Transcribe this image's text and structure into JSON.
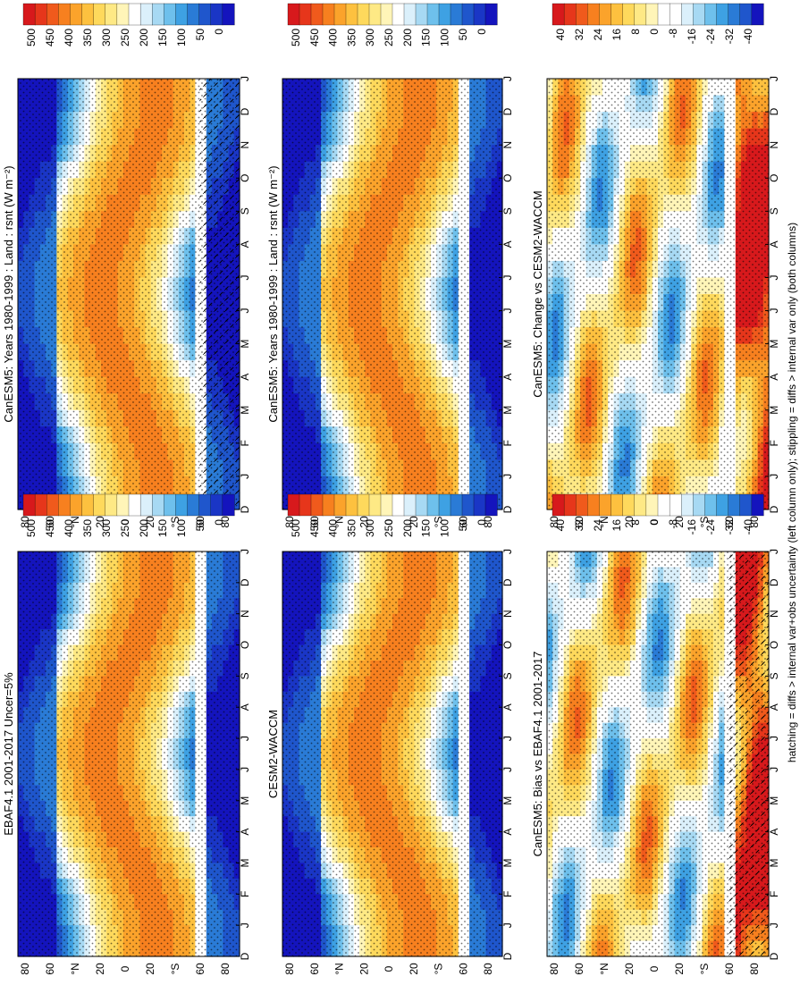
{
  "figure": {
    "footnote": "hatching = diffs > internal var+obs uncertainty (left column only); stippling = diffs > internal var only (both columns)"
  },
  "colors": {
    "abs_scale": [
      "#d7191c",
      "#e6361b",
      "#f05a1c",
      "#f7801f",
      "#fba32b",
      "#fdc13f",
      "#fed95c",
      "#fee985",
      "#fff5b8",
      "#ffffff",
      "#dbf0fb",
      "#a7d9f3",
      "#6ec0ec",
      "#3ea1e3",
      "#2a7bd6",
      "#1f56cc",
      "#1a36c6",
      "#1414bd"
    ],
    "diff_scale": [
      "#d7191c",
      "#e6361b",
      "#f05a1c",
      "#f7801f",
      "#fba32b",
      "#fdc13f",
      "#fed95c",
      "#fee985",
      "#fff5b8",
      "#ffffff",
      "#ffffff",
      "#dbf0fb",
      "#a7d9f3",
      "#6ec0ec",
      "#3ea1e3",
      "#2a7bd6",
      "#1f56cc",
      "#1414bd"
    ]
  },
  "chart_data": [
    {
      "type": "heatmap",
      "title": "CanESM5: Years 1980-1999 : Land : rsnt (W m⁻²)",
      "variable": "rsnt",
      "units": "W m-2",
      "region": "Land",
      "months": [
        "D",
        "J",
        "F",
        "M",
        "A",
        "M",
        "J",
        "J",
        "A",
        "S",
        "O",
        "N",
        "D",
        "J"
      ],
      "lat_ticks": [
        "80",
        "60",
        "°N",
        "20",
        "0",
        "20",
        "°S",
        "60",
        "80"
      ],
      "colorbar_labels": [
        "500",
        "450",
        "400",
        "350",
        "300",
        "250",
        "200",
        "150",
        "100",
        "50",
        "0"
      ],
      "range": [
        0,
        500
      ]
    },
    {
      "type": "heatmap",
      "title": "CanESM5: Years 1980-1999 : Land : rsnt (W m⁻²)",
      "variable": "rsnt",
      "units": "W m-2",
      "region": "Land",
      "months": [
        "D",
        "J",
        "F",
        "M",
        "A",
        "M",
        "J",
        "J",
        "A",
        "S",
        "O",
        "N",
        "D",
        "J"
      ],
      "lat_ticks": [
        "80",
        "60",
        "°N",
        "20",
        "0",
        "20",
        "°S",
        "60",
        "80"
      ],
      "colorbar_labels": [
        "500",
        "450",
        "400",
        "350",
        "300",
        "250",
        "200",
        "150",
        "100",
        "50",
        "0"
      ],
      "range": [
        0,
        500
      ]
    },
    {
      "type": "heatmap",
      "title": "EBAF4.1 2001-2017 Uncer=5%",
      "months": [
        "D",
        "J",
        "F",
        "M",
        "A",
        "M",
        "J",
        "J",
        "A",
        "S",
        "O",
        "N",
        "D",
        "J"
      ],
      "lat_ticks": [
        "80",
        "60",
        "°N",
        "20",
        "0",
        "20",
        "°S",
        "60",
        "80"
      ],
      "colorbar_labels": [
        "500",
        "450",
        "400",
        "350",
        "300",
        "250",
        "200",
        "150",
        "100",
        "50",
        "0"
      ],
      "range": [
        0,
        500
      ]
    },
    {
      "type": "heatmap",
      "title": "CESM2-WACCM",
      "months": [
        "D",
        "J",
        "F",
        "M",
        "A",
        "M",
        "J",
        "J",
        "A",
        "S",
        "O",
        "N",
        "D",
        "J"
      ],
      "lat_ticks": [
        "80",
        "60",
        "°N",
        "20",
        "0",
        "20",
        "°S",
        "60",
        "80"
      ],
      "colorbar_labels": [
        "500",
        "450",
        "400",
        "350",
        "300",
        "250",
        "200",
        "150",
        "100",
        "50",
        "0"
      ],
      "range": [
        0,
        500
      ]
    },
    {
      "type": "heatmap",
      "title": "CanESM5: Bias vs EBAF4.1 2001-2017",
      "months": [
        "D",
        "J",
        "F",
        "M",
        "A",
        "M",
        "J",
        "J",
        "A",
        "S",
        "O",
        "N",
        "D",
        "J"
      ],
      "lat_ticks": [
        "80",
        "60",
        "°N",
        "20",
        "0",
        "20",
        "°S",
        "60",
        "80"
      ],
      "colorbar_labels": [
        "40",
        "32",
        "24",
        "16",
        "8",
        "0",
        "-8",
        "-16",
        "-24",
        "-32",
        "-40"
      ],
      "range": [
        -40,
        40
      ]
    },
    {
      "type": "heatmap",
      "title": "CanESM5: Change vs CESM2-WACCM",
      "months": [
        "D",
        "J",
        "F",
        "M",
        "A",
        "M",
        "J",
        "J",
        "A",
        "S",
        "O",
        "N",
        "D",
        "J"
      ],
      "lat_ticks": [
        "80",
        "60",
        "°N",
        "20",
        "0",
        "20",
        "°S",
        "60",
        "80"
      ],
      "colorbar_labels": [
        "40",
        "32",
        "24",
        "16",
        "8",
        "0",
        "-8",
        "-16",
        "-24",
        "-32",
        "-40"
      ],
      "range": [
        -40,
        40
      ]
    }
  ]
}
